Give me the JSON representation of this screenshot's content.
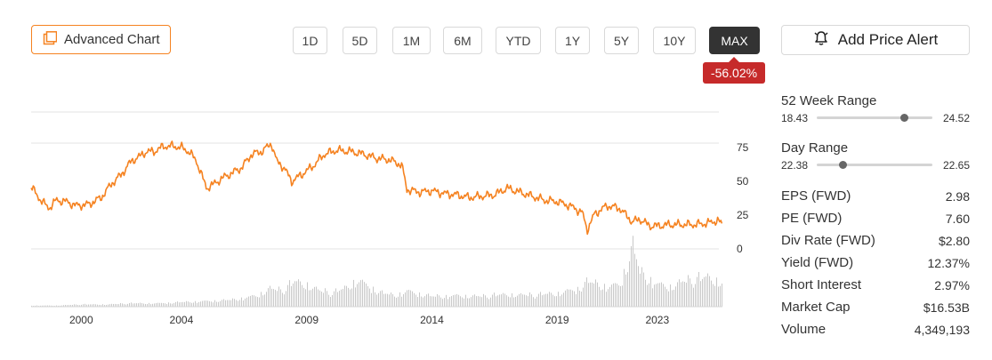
{
  "toolbar": {
    "advanced_chart_label": "Advanced Chart",
    "ranges": [
      "1D",
      "5D",
      "1M",
      "6M",
      "YTD",
      "1Y",
      "5Y",
      "10Y",
      "MAX"
    ],
    "active_range": "MAX",
    "change_pct": "-56.02%",
    "alert_label": "Add Price Alert"
  },
  "colors": {
    "line": "#f58220",
    "negative": "#c62a2a",
    "volume": "#c8c8c8"
  },
  "chart_data": {
    "type": "line",
    "title": "",
    "x_ticks": [
      "2000",
      "2004",
      "2009",
      "2014",
      "2019",
      "2023"
    ],
    "y_ticks": [
      "75",
      "50",
      "25",
      "0"
    ],
    "ylim": [
      0,
      110
    ],
    "series": [
      {
        "x": [
          1998.0,
          1998.3,
          1998.7,
          1999.0,
          1999.4,
          1999.8,
          2000.3,
          2000.8,
          2001.2,
          2001.6,
          2002.0,
          2002.3,
          2002.6,
          2002.9,
          2003.3,
          2003.7,
          2004.0,
          2004.3,
          2004.6,
          2005.0,
          2005.3,
          2005.6,
          2006.0,
          2006.4,
          2006.8,
          2007.2,
          2007.6,
          2007.8,
          2008.1,
          2008.4,
          2008.8,
          2009.3,
          2009.7,
          2010.2,
          2010.8,
          2011.3,
          2011.8,
          2012.3,
          2012.8,
          2013.0,
          2013.5,
          2014.0,
          2014.5,
          2015.0,
          2015.5,
          2016.0,
          2016.5,
          2017.0,
          2017.5,
          2018.0,
          2018.5,
          2019.0,
          2019.5,
          2020.0,
          2020.2,
          2020.5,
          2021.0,
          2021.5,
          2022.0,
          2022.3,
          2022.7,
          2023.0,
          2023.5,
          2024.0,
          2024.5,
          2025.0,
          2025.4,
          2025.6
        ],
        "y": [
          46,
          38,
          30,
          36,
          35,
          32,
          33,
          38,
          48,
          55,
          65,
          68,
          72,
          72,
          76,
          76,
          75,
          72,
          65,
          45,
          48,
          52,
          56,
          60,
          70,
          72,
          78,
          65,
          60,
          50,
          55,
          62,
          70,
          73,
          72,
          70,
          67,
          66,
          62,
          44,
          42,
          43,
          41,
          40,
          38,
          39,
          40,
          45,
          42,
          39,
          36,
          35,
          32,
          27,
          14,
          26,
          32,
          30,
          20,
          22,
          17,
          17,
          18,
          18,
          18,
          19,
          21,
          18
        ]
      }
    ],
    "volume": {
      "x": [
        1998.0,
        1999.0,
        2000.0,
        2001.0,
        2002.0,
        2003.0,
        2004.0,
        2005.0,
        2006.0,
        2007.0,
        2007.5,
        2008.0,
        2008.5,
        2009.0,
        2009.5,
        2010.0,
        2010.5,
        2011.0,
        2011.5,
        2012.0,
        2012.5,
        2013.0,
        2014.0,
        2015.0,
        2016.0,
        2017.0,
        2018.0,
        2019.0,
        2019.8,
        2020.2,
        2021.0,
        2021.5,
        2022.0,
        2022.3,
        2022.6,
        2023.0,
        2023.5,
        2024.0,
        2024.5,
        2025.0,
        2025.6
      ],
      "values": [
        1,
        1,
        2,
        2,
        3,
        3,
        4,
        5,
        6,
        10,
        16,
        14,
        22,
        20,
        14,
        12,
        16,
        24,
        18,
        12,
        10,
        14,
        9,
        10,
        9,
        11,
        10,
        12,
        16,
        22,
        18,
        20,
        54,
        30,
        26,
        20,
        18,
        22,
        24,
        26,
        22
      ]
    }
  },
  "stats": {
    "week52": {
      "title": "52 Week Range",
      "low": "18.43",
      "high": "24.52",
      "position": 0.75
    },
    "day": {
      "title": "Day Range",
      "low": "22.38",
      "high": "22.65",
      "position": 0.22
    },
    "rows": [
      {
        "label": "EPS (FWD)",
        "value": "2.98"
      },
      {
        "label": "PE (FWD)",
        "value": "7.60"
      },
      {
        "label": "Div Rate (FWD)",
        "value": "$2.80"
      },
      {
        "label": "Yield (FWD)",
        "value": "12.37%"
      },
      {
        "label": "Short Interest",
        "value": "2.97%"
      },
      {
        "label": "Market Cap",
        "value": "$16.53B"
      },
      {
        "label": "Volume",
        "value": "4,349,193"
      }
    ]
  }
}
